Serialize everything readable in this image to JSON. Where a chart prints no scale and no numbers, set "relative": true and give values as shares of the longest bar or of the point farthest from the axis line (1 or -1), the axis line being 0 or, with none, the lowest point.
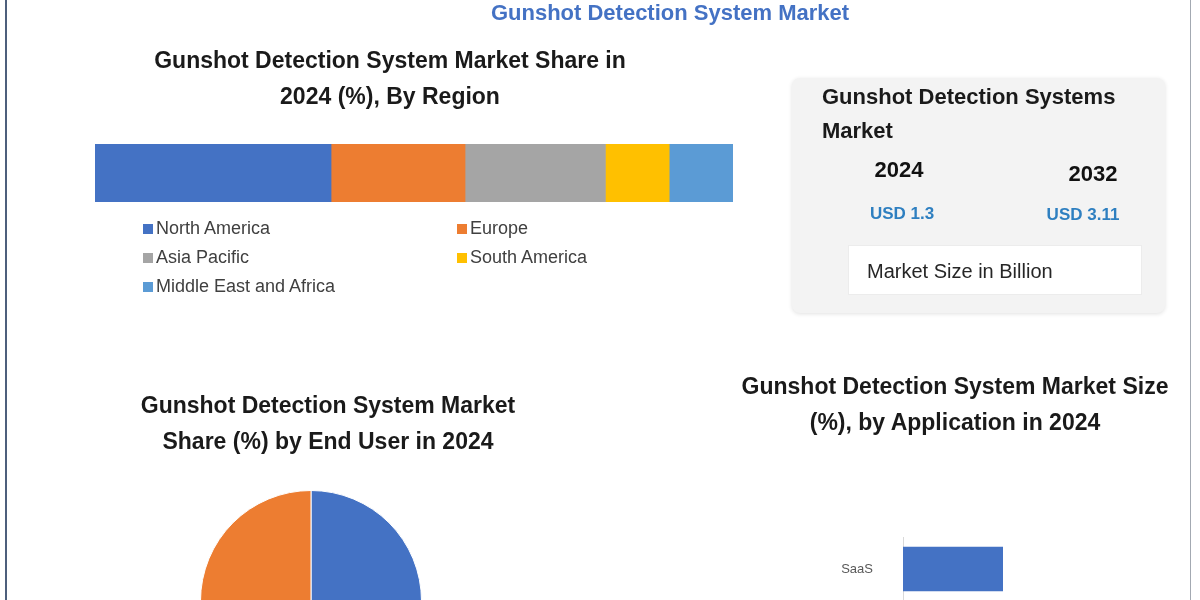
{
  "chart_data": [
    {
      "type": "other",
      "title": "Gunshot Detection System Market"
    },
    {
      "type": "bar",
      "orientation": "horizontal",
      "stacked": true,
      "relative": true,
      "title": "Gunshot Detection System Market Share in 2024 (%), By Region",
      "categories": [
        null
      ],
      "legend": "bottom",
      "series": [
        {
          "name": "North America",
          "color": "#4472c4",
          "values": [
            0.37
          ]
        },
        {
          "name": "Europe",
          "color": "#ed7d31",
          "values": [
            0.21
          ]
        },
        {
          "name": "Asia Pacific",
          "color": "#a5a5a5",
          "values": [
            0.22
          ]
        },
        {
          "name": "South America",
          "color": "#ffc000",
          "values": [
            0.1
          ]
        },
        {
          "name": "Middle East and Africa",
          "color": "#5b9bd5",
          "values": [
            0.1
          ]
        }
      ]
    },
    {
      "type": "other",
      "title": "Gunshot Detection Systems Market",
      "annotations": [
        "2024",
        "2032",
        "USD 1.3",
        "USD 3.11",
        "Market Size in Billion"
      ]
    },
    {
      "type": "pie",
      "title": "Gunshot Detection System Market Share (%) by End User in 2024",
      "categories": [
        null,
        null
      ],
      "values": [
        50,
        50
      ],
      "colors": [
        "#4472c4",
        "#ed7d31"
      ]
    },
    {
      "type": "bar",
      "orientation": "horizontal",
      "relative": true,
      "title": "Gunshot Detection System Market Size (%), by Application in 2024",
      "categories": [
        "SaaS"
      ],
      "series": [
        {
          "color": "#4472c4",
          "values": [
            1
          ]
        }
      ]
    }
  ]
}
